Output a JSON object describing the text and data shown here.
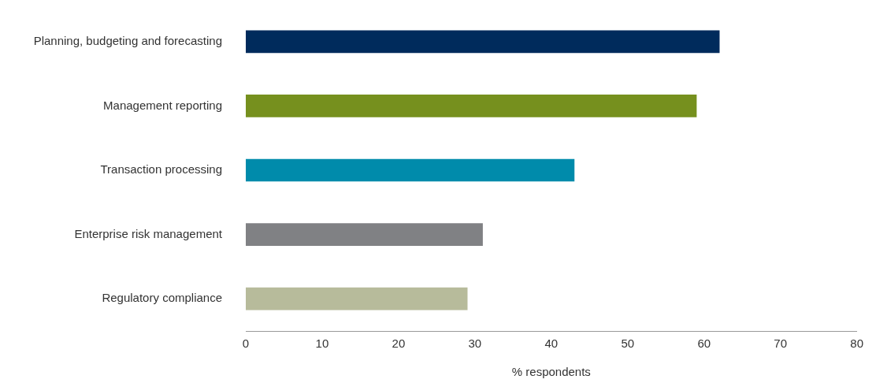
{
  "chart_data": {
    "type": "bar",
    "orientation": "horizontal",
    "categories": [
      "Planning, budgeting and forecasting",
      "Management reporting",
      "Transaction processing",
      "Enterprise risk management",
      "Regulatory compliance"
    ],
    "values": [
      62,
      59,
      43,
      31,
      29
    ],
    "colors": [
      "#002b5c",
      "#76901e",
      "#008bab",
      "#808184",
      "#b7bb9b"
    ],
    "xlabel": "% respondents",
    "xlim": [
      0,
      80
    ],
    "xticks": [
      0,
      10,
      20,
      30,
      40,
      50,
      60,
      70,
      80
    ],
    "grid": false,
    "legend": false
  }
}
